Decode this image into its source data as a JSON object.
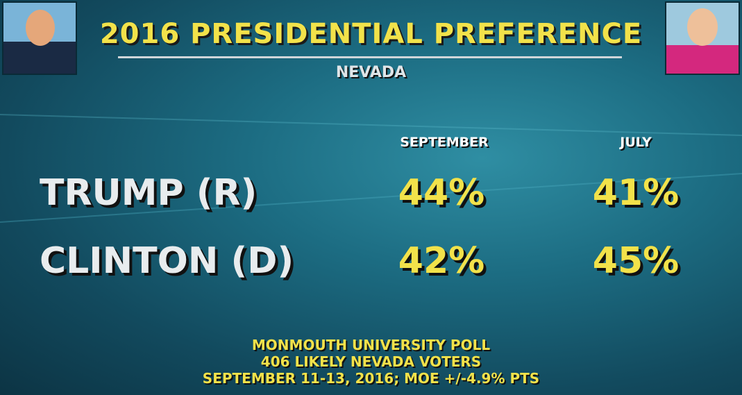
{
  "header": {
    "title": "2016 PRESIDENTIAL PREFERENCE",
    "subtitle": "NEVADA"
  },
  "table": {
    "columns": [
      "SEPTEMBER",
      "JULY"
    ],
    "rows": [
      [
        "TRUMP (R)",
        "44%",
        "41%"
      ],
      [
        "CLINTON (D)",
        "42%",
        "45%"
      ]
    ]
  },
  "footer": [
    "MONMOUTH UNIVERSITY POLL",
    "406 LIKELY NEVADA VOTERS",
    "SEPTEMBER 11-13, 2016; MOE +/-4.9% PTS"
  ]
}
